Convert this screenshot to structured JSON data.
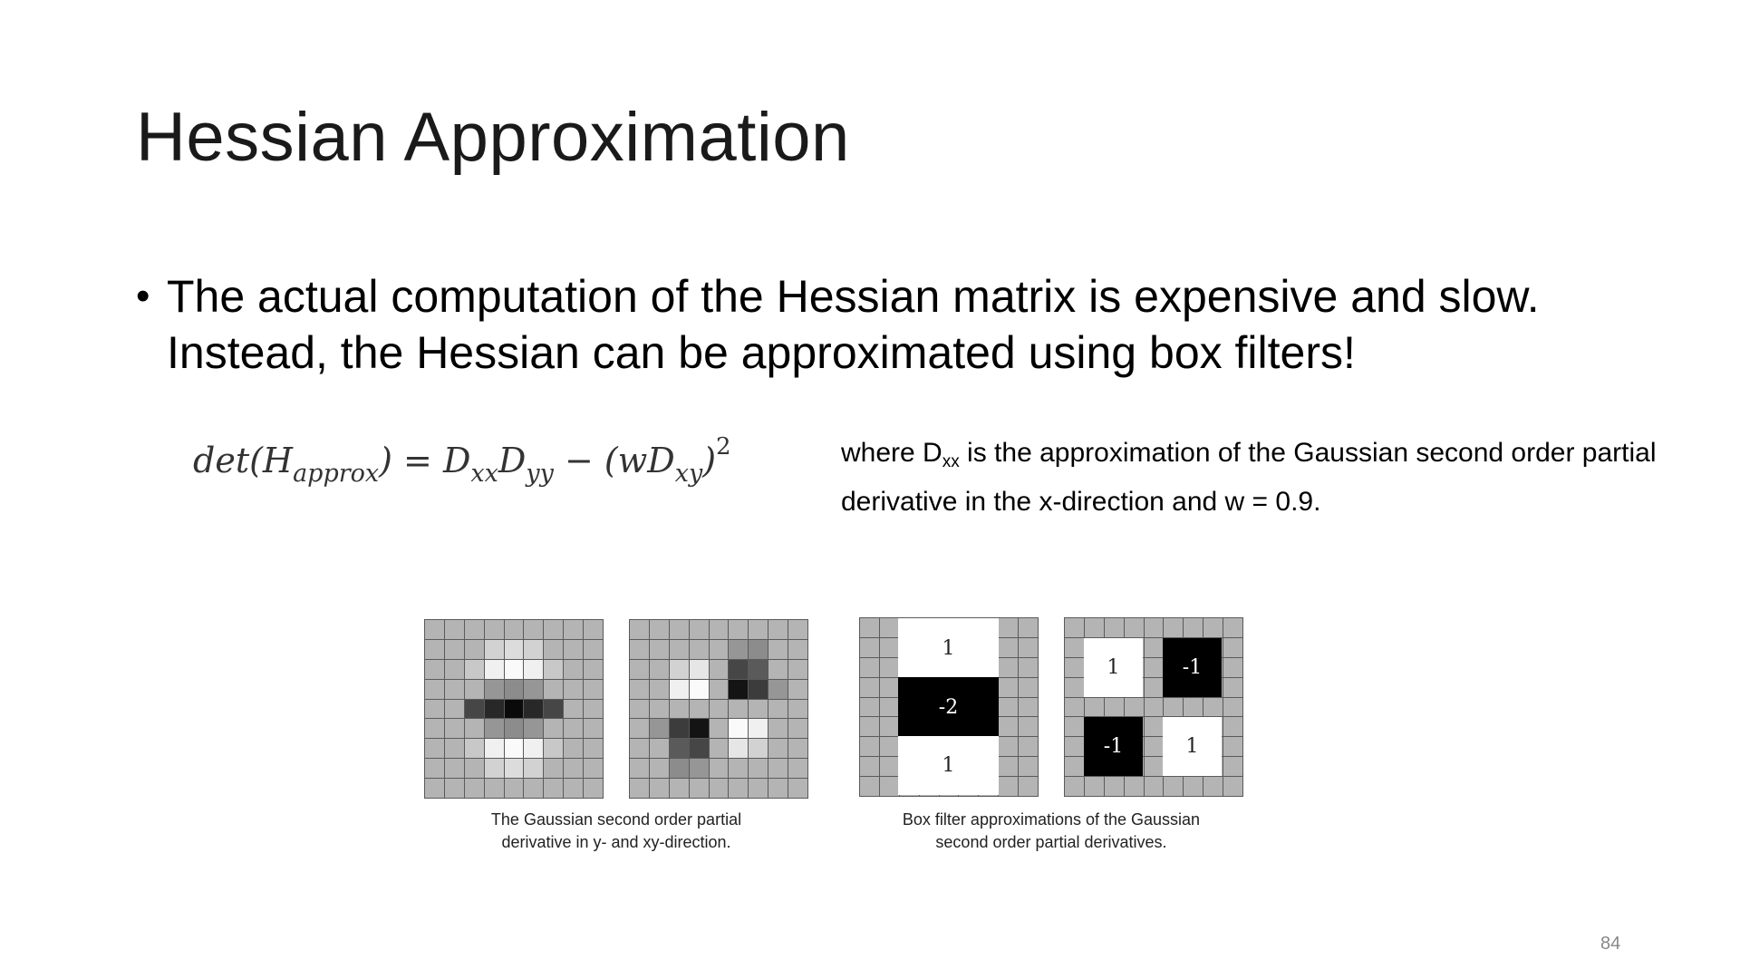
{
  "slide": {
    "title": "Hessian Approximation",
    "bullet": {
      "line1": "The actual computation of the Hessian matrix is expensive and slow.",
      "line2": "Instead, the Hessian can be approximated using box filters!"
    },
    "note": {
      "part1": "where D",
      "sub": "xx",
      "part2": " is the approximation of the Gaussian second order partial derivative in the x-direction and w = 0.9."
    },
    "figures": {
      "caption_left_line1": "The Gaussian second order partial",
      "caption_left_line2": "derivative in y- and xy-direction.",
      "caption_right_line1": "Box filter approximations of the Gaussian",
      "caption_right_line2": "second order partial derivatives.",
      "box_yy_top": "1",
      "box_yy_middle": "-2",
      "box_yy_bottom": "1",
      "box_xy_top_left": "1",
      "box_xy_top_right": "-1",
      "box_xy_bottom_left": "-1",
      "box_xy_bottom_right": "1"
    },
    "page_number": "84"
  }
}
